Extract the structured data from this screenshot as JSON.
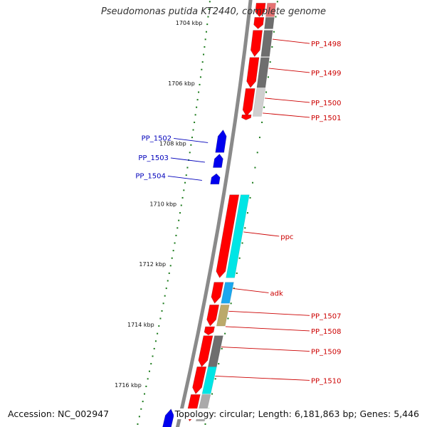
{
  "title": "Pseudomonas putida KT2440, complete genome",
  "footer": {
    "accession_label": "Accession: NC_002947",
    "topology_label": "Topology: circular; Length: 6,181,863 bp; Genes: 5,446"
  },
  "colors": {
    "backbone": "#8a8a8a",
    "ruler_tick": "#1a7a1a",
    "forward_label": "#cc0000",
    "reverse_label": "#0000bb",
    "gene_red": "#ff0000",
    "gene_blue": "#0000ee",
    "cog_cyan": "#00e5e5",
    "cog_lightblue": "#1aa7ee",
    "cog_gray_dark": "#6e6e6e",
    "cog_gray_light": "#cfcfcf",
    "cog_khaki": "#bba96a"
  },
  "ruler": {
    "labels": [
      "1704 kbp",
      "1706 kbp",
      "1708 kbp",
      "1710 kbp",
      "1712 kbp",
      "1714 kbp",
      "1716 kbp"
    ]
  },
  "genes": [
    {
      "id": "top-1",
      "strand": "forward",
      "start_kbp": 1703.35,
      "end_kbp": 1703.8,
      "cog_color": "#e57373"
    },
    {
      "id": "top-2",
      "strand": "forward",
      "start_kbp": 1703.82,
      "end_kbp": 1704.2,
      "cog_color": "#6e6e6e"
    },
    {
      "id": "PP_1498",
      "label": "PP_1498",
      "strand": "forward",
      "start_kbp": 1704.25,
      "end_kbp": 1705.12,
      "cog_color": "#6e6e6e"
    },
    {
      "id": "PP_1499",
      "label": "PP_1499",
      "strand": "forward",
      "start_kbp": 1705.15,
      "end_kbp": 1706.15,
      "cog_color": "#6e6e6e"
    },
    {
      "id": "PP_1500",
      "label": "PP_1500",
      "strand": "forward",
      "start_kbp": 1706.18,
      "end_kbp": 1707.1,
      "cog_color": "#cfcfcf"
    },
    {
      "id": "PP_1501",
      "label": "PP_1501",
      "strand": "forward",
      "start_kbp": 1707.05,
      "end_kbp": 1707.22,
      "cog_color": null
    },
    {
      "id": "PP_1502",
      "label": "PP_1502",
      "strand": "reverse",
      "start_kbp": 1707.55,
      "end_kbp": 1708.3
    },
    {
      "id": "PP_1503",
      "label": "PP_1503",
      "strand": "reverse",
      "start_kbp": 1708.35,
      "end_kbp": 1708.8
    },
    {
      "id": "PP_1504",
      "label": "PP_1504",
      "strand": "reverse",
      "start_kbp": 1709.0,
      "end_kbp": 1709.35
    },
    {
      "id": "ppc",
      "label": "ppc",
      "strand": "forward",
      "start_kbp": 1709.7,
      "end_kbp": 1712.45,
      "cog_color": "#00e5e5"
    },
    {
      "id": "adk",
      "label": "adk",
      "strand": "forward",
      "start_kbp": 1712.6,
      "end_kbp": 1713.3,
      "cog_color": "#1aa7ee"
    },
    {
      "id": "PP_1507",
      "label": "PP_1507",
      "strand": "forward",
      "start_kbp": 1713.35,
      "end_kbp": 1714.05,
      "cog_color": "#bba96a"
    },
    {
      "id": "PP_1508",
      "label": "PP_1508",
      "strand": "forward",
      "start_kbp": 1714.07,
      "end_kbp": 1714.35,
      "cog_color": null
    },
    {
      "id": "PP_1509",
      "label": "PP_1509",
      "strand": "forward",
      "start_kbp": 1714.37,
      "end_kbp": 1715.4,
      "cog_color": "#6e6e6e"
    },
    {
      "id": "PP_1510",
      "label": "PP_1510",
      "strand": "forward",
      "start_kbp": 1715.4,
      "end_kbp": 1716.3,
      "cog_color": "#00e5e5"
    },
    {
      "id": "bottom-1",
      "strand": "forward",
      "start_kbp": 1716.32,
      "end_kbp": 1717.2,
      "cog_color": "#aaaaaa"
    },
    {
      "id": "bottom-2",
      "strand": "reverse",
      "start_kbp": 1716.8,
      "end_kbp": 1717.6
    }
  ]
}
